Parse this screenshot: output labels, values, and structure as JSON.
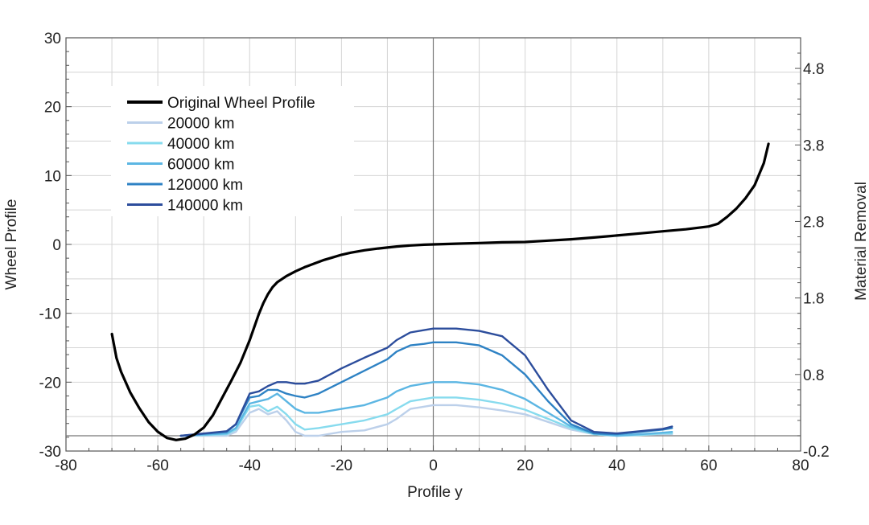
{
  "chart_data": {
    "type": "line",
    "title": "",
    "xlabel": "Profile y",
    "ylabel": "Wheel Profile",
    "y2label": "Material Removal",
    "xlim": [
      -80,
      80
    ],
    "ylim": [
      -30,
      30
    ],
    "y2lim": [
      -0.2,
      5.2
    ],
    "xticks": [
      "-80",
      "-60",
      "-40",
      "-20",
      "0",
      "20",
      "40",
      "60",
      "80"
    ],
    "yticks": [
      "-30",
      "-20",
      "-10",
      "0",
      "10",
      "20",
      "30"
    ],
    "y2ticks": [
      "-0.2",
      "0.8",
      "1.8",
      "2.8",
      "3.8",
      "4.8"
    ],
    "grid": true,
    "legend_position": "top-left",
    "reference_lines": {
      "x": 0,
      "y2": 0
    },
    "series": [
      {
        "name": "Original Wheel Profile",
        "axis": "left",
        "color": "#000000",
        "x": [
          -70,
          -69,
          -68,
          -66,
          -64,
          -62,
          -60,
          -58,
          -56,
          -54,
          -52,
          -50,
          -48,
          -46,
          -44,
          -42,
          -40,
          -39,
          -38,
          -37,
          -36,
          -35,
          -34,
          -32,
          -30,
          -28,
          -26,
          -24,
          -22,
          -20,
          -18,
          -15,
          -12,
          -10,
          -8,
          -5,
          -2,
          0,
          5,
          10,
          15,
          20,
          25,
          30,
          35,
          40,
          45,
          50,
          55,
          60,
          62,
          64,
          66,
          68,
          70,
          72,
          73
        ],
        "y": [
          -13,
          -16.5,
          -18.5,
          -21.5,
          -23.8,
          -25.8,
          -27.2,
          -28.1,
          -28.4,
          -28.2,
          -27.6,
          -26.6,
          -24.8,
          -22.3,
          -19.8,
          -17.2,
          -13.9,
          -12.0,
          -10.1,
          -8.5,
          -7.2,
          -6.2,
          -5.5,
          -4.6,
          -3.9,
          -3.3,
          -2.8,
          -2.3,
          -1.9,
          -1.5,
          -1.2,
          -0.85,
          -0.6,
          -0.45,
          -0.3,
          -0.15,
          -0.05,
          0,
          0.1,
          0.2,
          0.3,
          0.35,
          0.55,
          0.75,
          1.0,
          1.3,
          1.6,
          1.9,
          2.2,
          2.6,
          3.0,
          4.0,
          5.2,
          6.7,
          8.6,
          11.8,
          14.6
        ]
      },
      {
        "name": "20000 km",
        "axis": "right",
        "color": "#bcd0ea",
        "x": [
          -55,
          -45,
          -43,
          -40,
          -38,
          -36,
          -34,
          -32,
          -30,
          -28,
          -25,
          -20,
          -15,
          -10,
          -8,
          -5,
          -2,
          0,
          5,
          10,
          15,
          20,
          25,
          30,
          35,
          40,
          45,
          50,
          52
        ],
        "y": [
          0.0,
          0.0,
          0.05,
          0.3,
          0.35,
          0.28,
          0.32,
          0.2,
          0.05,
          0.0,
          0.0,
          0.05,
          0.07,
          0.15,
          0.22,
          0.35,
          0.38,
          0.4,
          0.4,
          0.37,
          0.33,
          0.28,
          0.18,
          0.08,
          0.02,
          0.0,
          0.01,
          0.02,
          0.02
        ]
      },
      {
        "name": "40000 km",
        "axis": "right",
        "color": "#87dbee",
        "x": [
          -55,
          -45,
          -43,
          -40,
          -38,
          -36,
          -34,
          -32,
          -30,
          -28,
          -25,
          -20,
          -15,
          -10,
          -8,
          -5,
          -2,
          0,
          5,
          10,
          15,
          20,
          25,
          30,
          35,
          40,
          45,
          50,
          52
        ],
        "y": [
          0.0,
          0.02,
          0.08,
          0.38,
          0.4,
          0.32,
          0.38,
          0.28,
          0.15,
          0.08,
          0.1,
          0.15,
          0.2,
          0.28,
          0.35,
          0.45,
          0.48,
          0.5,
          0.5,
          0.47,
          0.42,
          0.34,
          0.22,
          0.1,
          0.02,
          0.0,
          0.01,
          0.03,
          0.03
        ]
      },
      {
        "name": "60000 km",
        "axis": "right",
        "color": "#5cb6e3",
        "x": [
          -55,
          -45,
          -43,
          -40,
          -38,
          -36,
          -34,
          -32,
          -30,
          -28,
          -25,
          -20,
          -15,
          -10,
          -8,
          -5,
          -2,
          0,
          5,
          10,
          15,
          20,
          25,
          30,
          35,
          40,
          45,
          50,
          52
        ],
        "y": [
          0.0,
          0.03,
          0.1,
          0.42,
          0.45,
          0.48,
          0.55,
          0.45,
          0.35,
          0.3,
          0.3,
          0.35,
          0.4,
          0.5,
          0.58,
          0.65,
          0.68,
          0.7,
          0.7,
          0.67,
          0.6,
          0.48,
          0.3,
          0.12,
          0.03,
          0.0,
          0.02,
          0.04,
          0.05
        ]
      },
      {
        "name": "120000 km",
        "axis": "right",
        "color": "#2e82c4",
        "x": [
          -55,
          -45,
          -43,
          -40,
          -38,
          -36,
          -34,
          -32,
          -30,
          -28,
          -25,
          -20,
          -15,
          -10,
          -8,
          -5,
          -2,
          0,
          5,
          10,
          15,
          20,
          25,
          30,
          35,
          40,
          45,
          50,
          52
        ],
        "y": [
          0.0,
          0.05,
          0.15,
          0.5,
          0.52,
          0.6,
          0.6,
          0.55,
          0.52,
          0.5,
          0.55,
          0.7,
          0.85,
          1.0,
          1.1,
          1.18,
          1.2,
          1.22,
          1.22,
          1.18,
          1.05,
          0.8,
          0.45,
          0.15,
          0.03,
          0.02,
          0.05,
          0.08,
          0.1
        ]
      },
      {
        "name": "140000 km",
        "axis": "right",
        "color": "#2c4d9c",
        "x": [
          -55,
          -45,
          -43,
          -40,
          -38,
          -36,
          -34,
          -32,
          -30,
          -28,
          -25,
          -20,
          -15,
          -10,
          -8,
          -5,
          -2,
          0,
          5,
          10,
          15,
          20,
          25,
          30,
          35,
          40,
          45,
          50,
          52
        ],
        "y": [
          0.0,
          0.06,
          0.15,
          0.55,
          0.58,
          0.65,
          0.7,
          0.7,
          0.68,
          0.68,
          0.72,
          0.88,
          1.02,
          1.15,
          1.25,
          1.35,
          1.38,
          1.4,
          1.4,
          1.37,
          1.3,
          1.05,
          0.6,
          0.2,
          0.05,
          0.03,
          0.06,
          0.09,
          0.12
        ]
      }
    ]
  }
}
